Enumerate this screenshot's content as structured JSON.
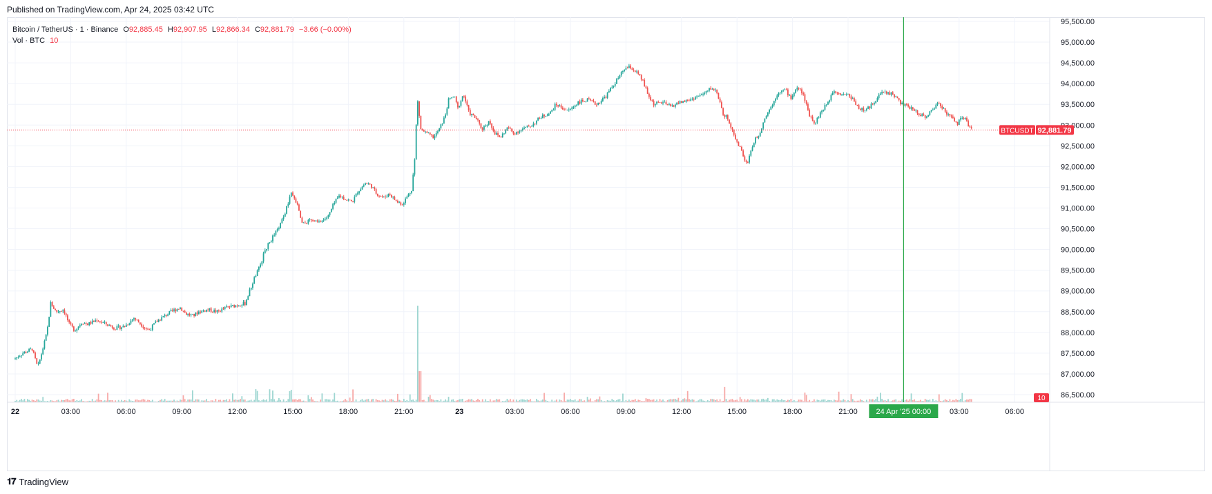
{
  "header": {
    "published": "Published on TradingView.com, Apr 24, 2025 03:42 UTC"
  },
  "legend": {
    "symbol": "Bitcoin / TetherUS · 1 · Binance",
    "o_label": "O",
    "o_value": "92,885.45",
    "h_label": "H",
    "h_value": "92,907.95",
    "l_label": "L",
    "l_value": "92,866.34",
    "c_label": "C",
    "c_value": "92,881.79",
    "change": "−3.66 (−0.00%)",
    "vol_label": "Vol · BTC",
    "vol_value": "10"
  },
  "price_tag": {
    "symbol": "BTCUSDT",
    "value": "92,881.79"
  },
  "volume_tag": "10",
  "crosshair_label": "24 Apr '25   00:00",
  "footer": {
    "brand": "TradingView"
  },
  "colors": {
    "up": "#26a69a",
    "down": "#ef5350",
    "crosshair": "#2ba84a",
    "last_price": "#f23645"
  },
  "chart_data": {
    "type": "line",
    "title": "",
    "xlabel": "",
    "ylabel": "",
    "ylim": [
      86500,
      95500
    ],
    "y_ticks": [
      "86,500.00",
      "87,000.00",
      "87,500.00",
      "88,000.00",
      "88,500.00",
      "89,000.00",
      "89,500.00",
      "90,000.00",
      "90,500.00",
      "91,000.00",
      "91,500.00",
      "92,000.00",
      "92,500.00",
      "93,000.00",
      "93,500.00",
      "94,000.00",
      "94,500.00",
      "95,000.00",
      "95,500.00"
    ],
    "x_range_hours": [
      0,
      57
    ],
    "x_ticks": [
      {
        "label": "22",
        "hour": 0,
        "bold": true
      },
      {
        "label": "03:00",
        "hour": 3
      },
      {
        "label": "06:00",
        "hour": 6
      },
      {
        "label": "09:00",
        "hour": 9
      },
      {
        "label": "12:00",
        "hour": 12
      },
      {
        "label": "15:00",
        "hour": 15
      },
      {
        "label": "18:00",
        "hour": 18
      },
      {
        "label": "21:00",
        "hour": 21
      },
      {
        "label": "23",
        "hour": 24,
        "bold": true
      },
      {
        "label": "03:00",
        "hour": 27
      },
      {
        "label": "06:00",
        "hour": 30
      },
      {
        "label": "09:00",
        "hour": 33
      },
      {
        "label": "12:00",
        "hour": 36
      },
      {
        "label": "15:00",
        "hour": 39
      },
      {
        "label": "18:00",
        "hour": 42
      },
      {
        "label": "21:00",
        "hour": 45
      },
      {
        "label": "03:00",
        "hour": 51
      },
      {
        "label": "06:00",
        "hour": 54
      }
    ],
    "crosshair_hour": 48,
    "last_hour": 51.7,
    "last_price": 92881.79,
    "series": [
      {
        "values": [
          [
            0,
            87350
          ],
          [
            0.5,
            87500
          ],
          [
            1,
            87600
          ],
          [
            1.3,
            87150
          ],
          [
            1.6,
            87650
          ],
          [
            1.8,
            88000
          ],
          [
            2,
            88700
          ],
          [
            2.3,
            88500
          ],
          [
            2.7,
            88550
          ],
          [
            3,
            88200
          ],
          [
            3.3,
            88050
          ],
          [
            3.7,
            88250
          ],
          [
            4,
            88200
          ],
          [
            4.5,
            88300
          ],
          [
            5,
            88200
          ],
          [
            5.5,
            88100
          ],
          [
            6,
            88150
          ],
          [
            6.5,
            88350
          ],
          [
            7,
            88150
          ],
          [
            7.3,
            88050
          ],
          [
            7.7,
            88250
          ],
          [
            8,
            88350
          ],
          [
            8.5,
            88500
          ],
          [
            9,
            88600
          ],
          [
            9.3,
            88450
          ],
          [
            9.7,
            88400
          ],
          [
            10,
            88500
          ],
          [
            10.5,
            88550
          ],
          [
            11,
            88500
          ],
          [
            11.5,
            88600
          ],
          [
            12,
            88650
          ],
          [
            12.5,
            88700
          ],
          [
            13,
            89300
          ],
          [
            13.3,
            89600
          ],
          [
            13.6,
            90000
          ],
          [
            14,
            90300
          ],
          [
            14.3,
            90500
          ],
          [
            14.6,
            90800
          ],
          [
            15,
            91350
          ],
          [
            15.3,
            91100
          ],
          [
            15.6,
            90600
          ],
          [
            16,
            90700
          ],
          [
            16.5,
            90650
          ],
          [
            17,
            90800
          ],
          [
            17.3,
            91100
          ],
          [
            17.6,
            91300
          ],
          [
            18,
            91200
          ],
          [
            18.3,
            91150
          ],
          [
            18.6,
            91400
          ],
          [
            19,
            91600
          ],
          [
            19.3,
            91550
          ],
          [
            19.6,
            91350
          ],
          [
            20,
            91250
          ],
          [
            20.3,
            91350
          ],
          [
            20.7,
            91150
          ],
          [
            21,
            91100
          ],
          [
            21.3,
            91300
          ],
          [
            21.5,
            91450
          ],
          [
            21.7,
            92300
          ],
          [
            21.8,
            93700
          ],
          [
            22,
            92900
          ],
          [
            22.3,
            92800
          ],
          [
            22.7,
            92700
          ],
          [
            23,
            92900
          ],
          [
            23.3,
            93200
          ],
          [
            23.5,
            93600
          ],
          [
            23.8,
            93700
          ],
          [
            24,
            93400
          ],
          [
            24.3,
            93750
          ],
          [
            24.6,
            93300
          ],
          [
            25,
            93150
          ],
          [
            25.3,
            92900
          ],
          [
            25.7,
            93100
          ],
          [
            26,
            92800
          ],
          [
            26.3,
            92700
          ],
          [
            26.7,
            92950
          ],
          [
            27,
            92800
          ],
          [
            27.5,
            92900
          ],
          [
            28,
            93000
          ],
          [
            28.5,
            93200
          ],
          [
            29,
            93300
          ],
          [
            29.3,
            93500
          ],
          [
            29.7,
            93400
          ],
          [
            30,
            93350
          ],
          [
            30.5,
            93550
          ],
          [
            31,
            93600
          ],
          [
            31.5,
            93500
          ],
          [
            32,
            93700
          ],
          [
            32.3,
            93900
          ],
          [
            32.7,
            94150
          ],
          [
            33,
            94350
          ],
          [
            33.3,
            94400
          ],
          [
            33.7,
            94250
          ],
          [
            34,
            94050
          ],
          [
            34.3,
            93700
          ],
          [
            34.6,
            93500
          ],
          [
            35,
            93550
          ],
          [
            35.5,
            93450
          ],
          [
            36,
            93550
          ],
          [
            36.5,
            93600
          ],
          [
            37,
            93700
          ],
          [
            37.3,
            93750
          ],
          [
            37.7,
            93900
          ],
          [
            38,
            93800
          ],
          [
            38.3,
            93300
          ],
          [
            38.6,
            93150
          ],
          [
            39,
            92700
          ],
          [
            39.3,
            92400
          ],
          [
            39.6,
            92050
          ],
          [
            40,
            92600
          ],
          [
            40.3,
            92800
          ],
          [
            40.6,
            93200
          ],
          [
            41,
            93500
          ],
          [
            41.3,
            93800
          ],
          [
            41.7,
            93850
          ],
          [
            42,
            93650
          ],
          [
            42.3,
            93900
          ],
          [
            42.6,
            93800
          ],
          [
            43,
            93250
          ],
          [
            43.3,
            93050
          ],
          [
            43.6,
            93300
          ],
          [
            44,
            93550
          ],
          [
            44.3,
            93850
          ],
          [
            44.7,
            93750
          ],
          [
            45,
            93750
          ],
          [
            45.3,
            93650
          ],
          [
            45.7,
            93400
          ],
          [
            46,
            93350
          ],
          [
            46.3,
            93450
          ],
          [
            46.7,
            93700
          ],
          [
            47,
            93800
          ],
          [
            47.5,
            93750
          ],
          [
            48,
            93500
          ],
          [
            48.3,
            93450
          ],
          [
            48.7,
            93350
          ],
          [
            49,
            93250
          ],
          [
            49.3,
            93200
          ],
          [
            49.7,
            93400
          ],
          [
            50,
            93550
          ],
          [
            50.3,
            93350
          ],
          [
            50.6,
            93200
          ],
          [
            51,
            93050
          ],
          [
            51.3,
            93200
          ],
          [
            51.5,
            93100
          ],
          [
            51.7,
            92880
          ]
        ]
      }
    ]
  }
}
